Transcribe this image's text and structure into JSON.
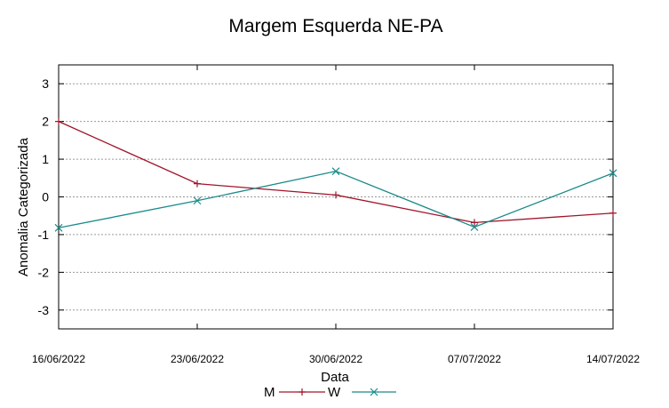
{
  "chart_data": {
    "type": "line",
    "title": "Margem Esquerda NE-PA",
    "xlabel": "Data",
    "ylabel": "Anomalia Categorizada",
    "categories": [
      "16/06/2022",
      "23/06/2022",
      "30/06/2022",
      "07/07/2022",
      "14/07/2022"
    ],
    "yticks": [
      "3",
      "2",
      "1",
      "0",
      "-1",
      "-2",
      "-3"
    ],
    "ylim": [
      -3.5,
      3.5
    ],
    "grid": "horizontal dashed",
    "legend_position": "bottom-center",
    "series": [
      {
        "name": "M",
        "color": "#a0142a",
        "marker": "plus",
        "values": [
          2.0,
          0.35,
          0.05,
          -0.68,
          -0.43
        ]
      },
      {
        "name": "W",
        "color": "#1a8a8a",
        "marker": "cross",
        "values": [
          -0.82,
          -0.1,
          0.68,
          -0.8,
          0.63
        ]
      }
    ]
  }
}
